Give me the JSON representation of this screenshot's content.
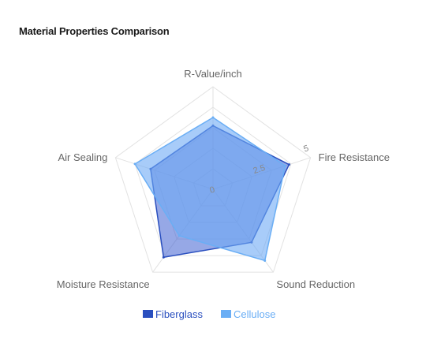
{
  "chart_data": {
    "type": "radar",
    "title": "Material Properties Comparison",
    "axes": [
      "R-Value/inch",
      "Fire Resistance",
      "Sound Reduction",
      "Moisture Resistance",
      "Air Sealing"
    ],
    "r_range": [
      0,
      5
    ],
    "ticks": [
      {
        "value": 0,
        "label": "0"
      },
      {
        "value": 2.5,
        "label": "2.5"
      },
      {
        "value": 5,
        "label": "5"
      }
    ],
    "grid_levels": [
      1,
      2,
      3,
      4,
      5
    ],
    "series": [
      {
        "name": "Fiberglass",
        "values": [
          3.1,
          3.9,
          3.2,
          4.1,
          3.2
        ],
        "color": "#2a4fbf",
        "fill": "rgba(64, 96, 210, 0.55)"
      },
      {
        "name": "Cellulose",
        "values": [
          3.5,
          3.7,
          4.3,
          2.8,
          4.0
        ],
        "color": "#6aaef5",
        "fill": "rgba(110, 170, 245, 0.6)"
      }
    ],
    "legend_position": "bottom",
    "grid": true
  }
}
